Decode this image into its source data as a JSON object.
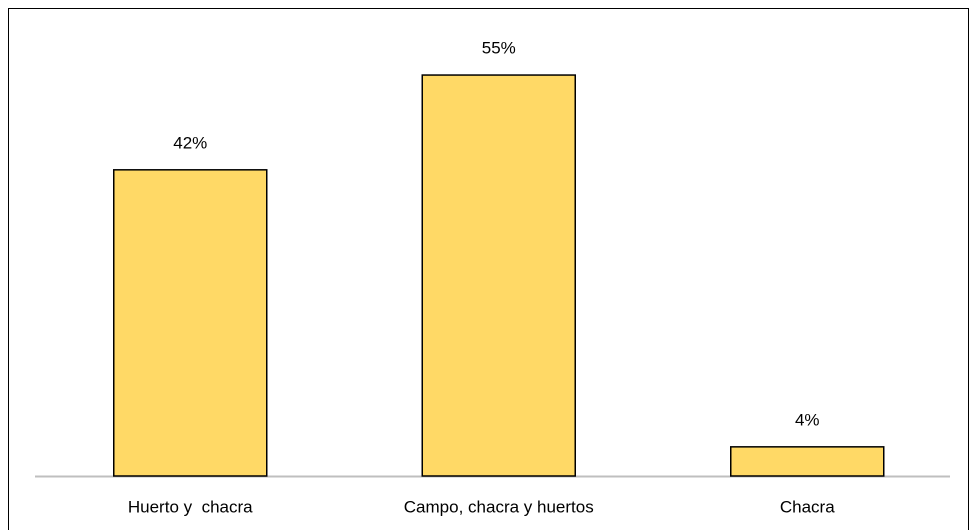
{
  "chart_data": {
    "type": "bar",
    "categories": [
      "Huerto y  chacra",
      "Campo, chacra y huertos",
      "Chacra"
    ],
    "values": [
      42,
      55,
      4
    ],
    "value_labels": [
      "42%",
      "55%",
      "4%"
    ],
    "color": "#ffd966"
  }
}
